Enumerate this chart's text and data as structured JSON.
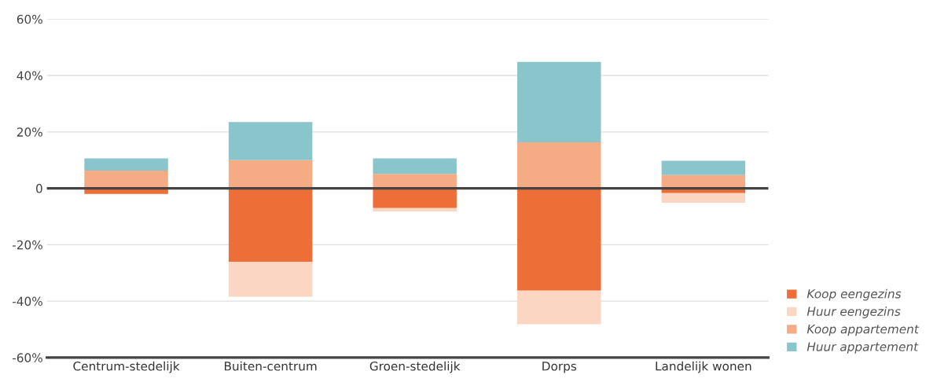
{
  "chart_data": {
    "type": "bar",
    "stacked": true,
    "categories": [
      "Centrum-stedelijk",
      "Buiten-centrum",
      "Groen-stedelijk",
      "Dorps",
      "Landelijk wonen"
    ],
    "series": [
      {
        "name": "Koop eengezins",
        "color": "#ed6f37",
        "values": [
          -2.0,
          -26.0,
          -7.0,
          -36.3,
          -1.7
        ]
      },
      {
        "name": "Huur eengezins",
        "color": "#fbd7c3",
        "values": [
          0,
          -12.4,
          -1.2,
          -11.9,
          -3.4
        ]
      },
      {
        "name": "Koop appartement",
        "color": "#f5ac84",
        "values": [
          6.3,
          10.0,
          5.1,
          16.3,
          4.7
        ]
      },
      {
        "name": "Huur appartement",
        "color": "#8bc5cc",
        "values": [
          4.3,
          13.5,
          5.5,
          28.5,
          5.1
        ]
      }
    ],
    "ylim": [
      -60,
      60
    ],
    "yticks": [
      {
        "value": -60,
        "label": "-60%"
      },
      {
        "value": -40,
        "label": "-40%"
      },
      {
        "value": -20,
        "label": "-20%"
      },
      {
        "value": 0,
        "label": "0"
      },
      {
        "value": 20,
        "label": "20%"
      },
      {
        "value": 40,
        "label": "40%"
      },
      {
        "value": 60,
        "label": "60%"
      }
    ],
    "ref_lines": [
      {
        "axis": "y",
        "value": 0,
        "color": "#444444"
      }
    ],
    "grid": "y",
    "legend": "bottom right"
  }
}
